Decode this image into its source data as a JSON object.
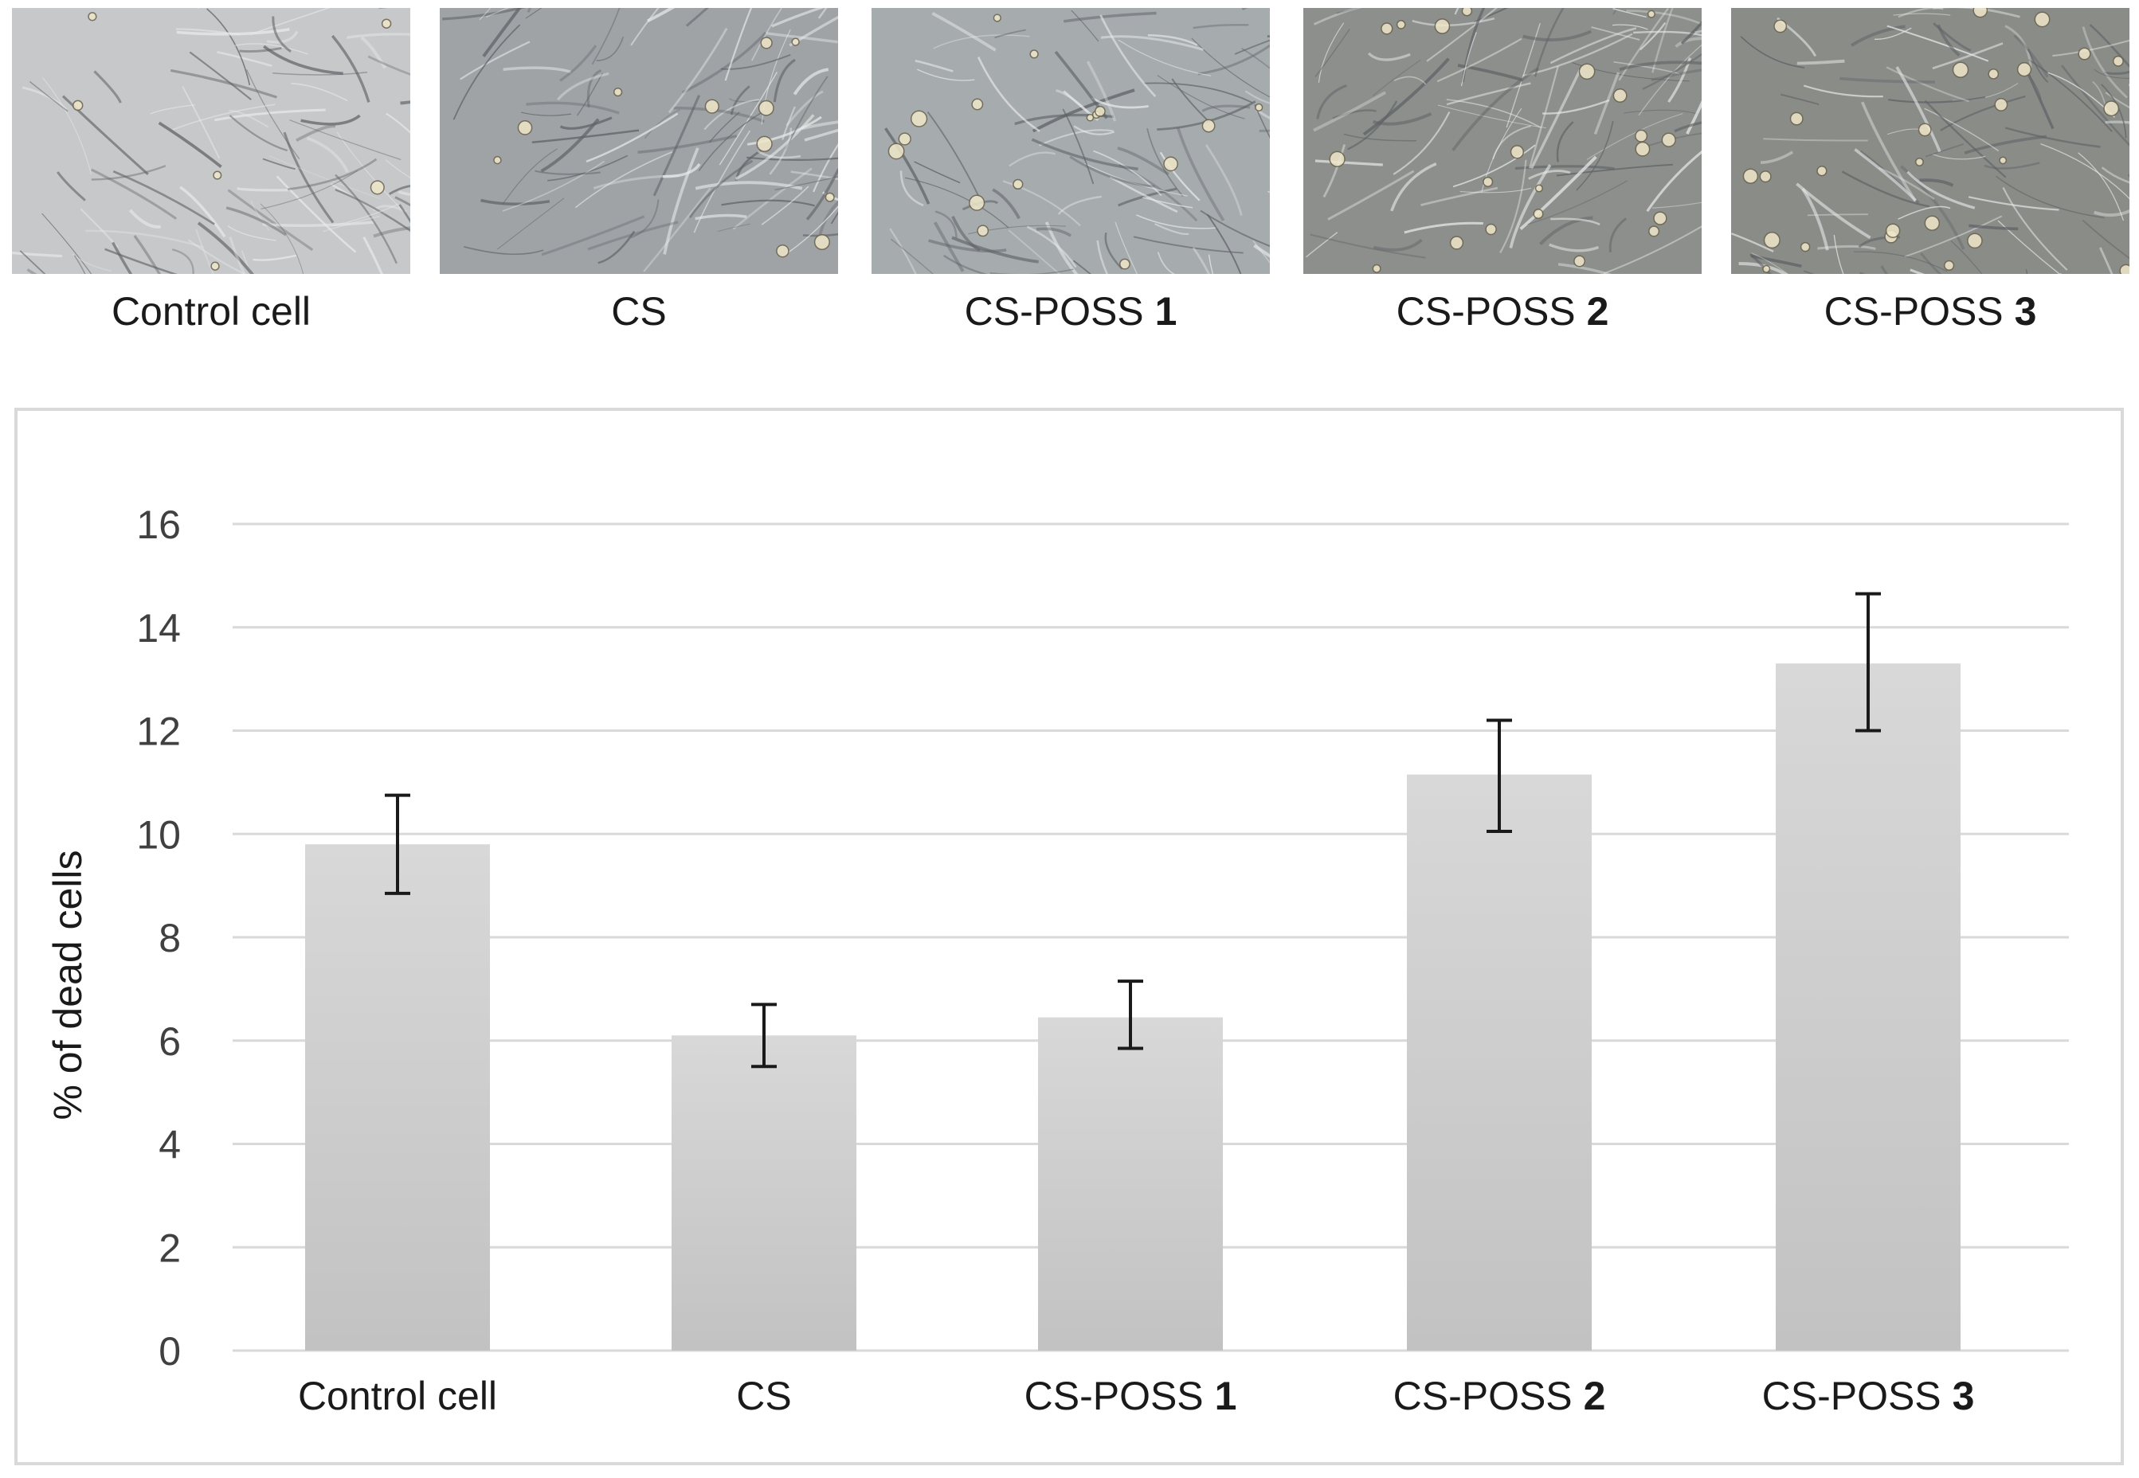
{
  "micrographs": [
    {
      "name": "Control cell",
      "suffix": "",
      "tone": "#c6c8ca"
    },
    {
      "name": "CS",
      "suffix": "",
      "tone": "#9fa3a6"
    },
    {
      "name": "CS-POSS ",
      "suffix": "1",
      "tone": "#a6abae"
    },
    {
      "name": "CS-POSS ",
      "suffix": "2",
      "tone": "#8c8f8b"
    },
    {
      "name": "CS-POSS ",
      "suffix": "3",
      "tone": "#8a8c88"
    }
  ],
  "chart_data": {
    "type": "bar",
    "categories": [
      {
        "name": "Control cell",
        "suffix": ""
      },
      {
        "name": "CS",
        "suffix": ""
      },
      {
        "name": "CS-POSS ",
        "suffix": "1"
      },
      {
        "name": "CS-POSS ",
        "suffix": "2"
      },
      {
        "name": "CS-POSS ",
        "suffix": "3"
      }
    ],
    "values": [
      9.8,
      6.1,
      6.45,
      11.15,
      13.3
    ],
    "error": [
      [
        8.85,
        10.75
      ],
      [
        5.5,
        6.7
      ],
      [
        5.85,
        7.15
      ],
      [
        10.05,
        12.2
      ],
      [
        12.0,
        14.65
      ]
    ],
    "ylabel": "% of dead cells",
    "xlabel": "",
    "title": "",
    "ylim": [
      0,
      16
    ],
    "yticks": [
      0,
      2,
      4,
      6,
      8,
      10,
      12,
      14,
      16
    ],
    "grid": true,
    "legend": "none",
    "colors": {
      "bar_top": "#d8d8d8",
      "bar_bottom": "#c2c2c2",
      "grid": "#d9d9d9",
      "error": "#1a1a1a",
      "tick": "#404040"
    }
  }
}
